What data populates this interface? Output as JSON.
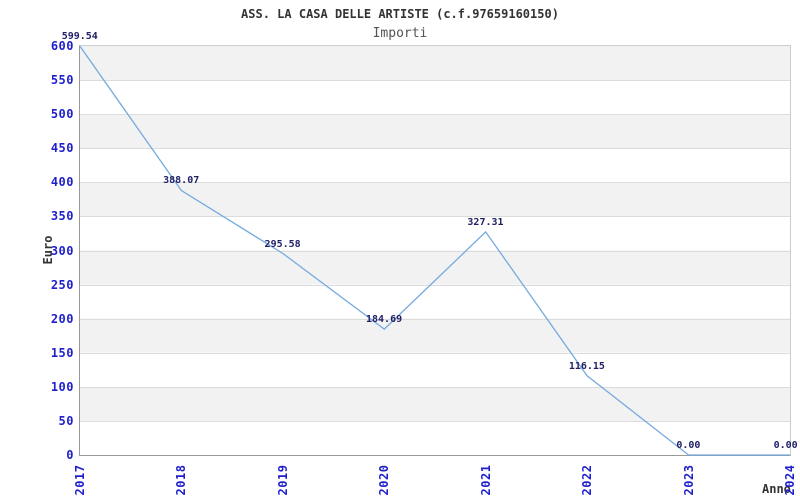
{
  "chart_data": {
    "type": "line",
    "title": "ASS. LA CASA DELLE ARTISTE (c.f.97659160150)",
    "subtitle": "Importi",
    "xlabel": "Anno",
    "ylabel": "Euro",
    "x": [
      2017,
      2018,
      2019,
      2020,
      2021,
      2022,
      2023,
      2024
    ],
    "values": [
      599.54,
      388.07,
      295.58,
      184.69,
      327.31,
      116.15,
      0,
      0
    ],
    "point_labels": [
      "599.54",
      "388.07",
      "295.58",
      "184.69",
      "327.31",
      "116.15",
      "0.00",
      "0.00"
    ],
    "ylim": [
      0,
      600
    ],
    "ytick_step": 50,
    "grid": true,
    "legend": "none",
    "band_fill": "alternating horizontal, gray topmost",
    "colors": {
      "line": "#76aadf",
      "tick_text": "#1f1fcc",
      "point_label_text": "#1f1f66",
      "title_text": "#333333",
      "subtitle_text": "#555555",
      "band": "#f2f2f2",
      "grid": "#dcdcdc",
      "axis": "#999999"
    }
  }
}
